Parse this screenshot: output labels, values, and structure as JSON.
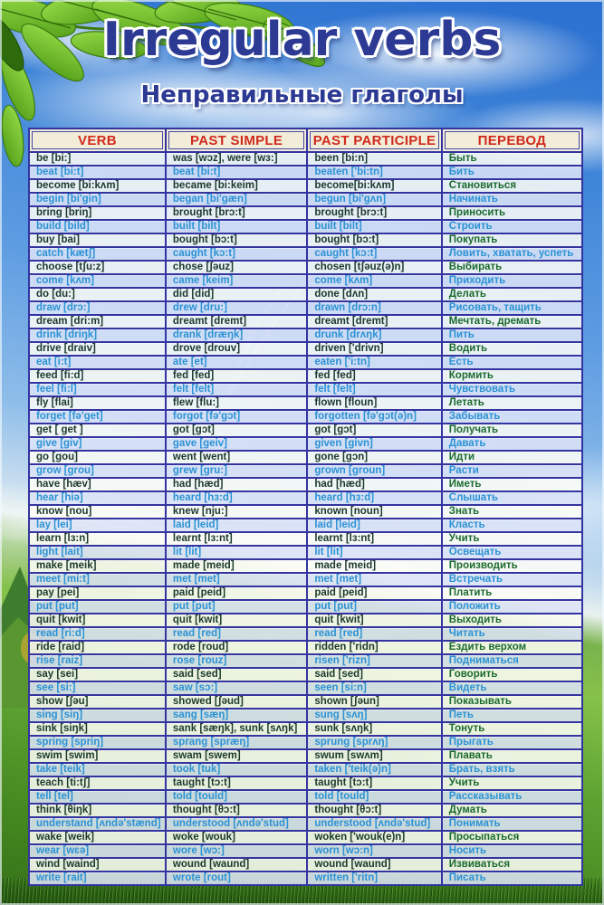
{
  "poster": {
    "title": "Irregular verbs",
    "subtitle": "Неправильные глаголы"
  },
  "table": {
    "headers": [
      "VERB",
      "PAST SIMPLE",
      "PAST PARTICIPLE",
      "ПЕРЕВОД"
    ],
    "rows": [
      [
        "be [bi:]",
        "was [wɔz], were [wɜ:]",
        "been [bi:n]",
        "Быть"
      ],
      [
        "beat [bi:t]",
        "beat [bi:t]",
        "beaten ['bi:tn]",
        "Бить"
      ],
      [
        "become [bi:kʌm]",
        "became [bi:keim]",
        "become[bi:kʌm]",
        "Становиться"
      ],
      [
        "begin [bi'gin]",
        "began [bi'gæn]",
        "begun [bi'gʌn]",
        "Начинать"
      ],
      [
        "bring [briŋ]",
        "brought [brɔ:t]",
        "brought [brɔ:t]",
        "Приносить"
      ],
      [
        "build [bild]",
        "built [bilt]",
        "built [bilt]",
        "Строить"
      ],
      [
        "buy [bai]",
        "bought [bɔ:t]",
        "bought [bɔ:t]",
        "Покупать"
      ],
      [
        "catch [kætʃ]",
        "caught [kɔ:t]",
        "caught [kɔ:t]",
        "Ловить, хватать, успеть"
      ],
      [
        "choose [tʃu:z]",
        "chose [ʃəuz]",
        "chosen [tʃəuz(ə)n]",
        "Выбирать"
      ],
      [
        "come [kʌm]",
        "came [keim]",
        "come [kʌm]",
        "Приходить"
      ],
      [
        "do [du:]",
        "did [did]",
        "done [dʌn]",
        "Делать"
      ],
      [
        "draw [drɔ:]",
        "drew [dru:]",
        "drawn [drɔ:n]",
        "Рисовать, тащить"
      ],
      [
        "dream [dri:m]",
        "dreamt [dremt]",
        "dreamt [dremt]",
        "Мечтать, дремать"
      ],
      [
        "drink [driŋk]",
        "drank [dræŋk]",
        "drunk [drʌŋk]",
        "Пить"
      ],
      [
        "drive [draiv]",
        "drove [drouv]",
        "driven ['drivn]",
        "Водить"
      ],
      [
        "eat [i:t]",
        "ate [et]",
        "eaten ['i:tn]",
        "Есть"
      ],
      [
        "feed [fi:d]",
        "fed [fed]",
        "fed [fed]",
        "Кормить"
      ],
      [
        "feel [fi:l]",
        "felt [felt]",
        "felt [felt]",
        "Чувствовать"
      ],
      [
        "fly [flai]",
        "flew [flu:]",
        "flown [floun]",
        "Летать"
      ],
      [
        "forget [fə'get]",
        "forgot [fə'gɔt]",
        "forgotten [fə'gɔt(ə)n]",
        "Забывать"
      ],
      [
        "get [ get ]",
        "got [gɔt]",
        "got [gɔt]",
        "Получать"
      ],
      [
        "give [giv]",
        "gave [geiv]",
        "given [givn]",
        "Давать"
      ],
      [
        "go [gou]",
        "went [went]",
        "gone [gɔn]",
        "Идти"
      ],
      [
        "grow [grou]",
        "grew [gru:]",
        "grown [groun]",
        "Расти"
      ],
      [
        "have [hæv]",
        "had [hæd]",
        "had [hæd]",
        "Иметь"
      ],
      [
        "hear [hiə]",
        "heard [hɜ:d]",
        "heard [hɜ:d]",
        "Слышать"
      ],
      [
        "know [nou]",
        "knew [nju:]",
        "known [noun]",
        "Знать"
      ],
      [
        "lay [lei]",
        "laid [leid]",
        "laid [leid]",
        "Класть"
      ],
      [
        "learn [lɜ:n]",
        "learnt [lɜ:nt]",
        "learnt [lɜ:nt]",
        "Учить"
      ],
      [
        "light [lait]",
        "lit [lit]",
        "lit [lit]",
        "Освещать"
      ],
      [
        "make [meik]",
        "made [meid]",
        "made [meid]",
        "Производить"
      ],
      [
        "meet [mi:t]",
        "met [met]",
        "met [met]",
        "Встречать"
      ],
      [
        "pay [pei]",
        "paid [peid]",
        "paid [peid]",
        "Платить"
      ],
      [
        "put [put]",
        "put [put]",
        "put [put]",
        "Положить"
      ],
      [
        "quit [kwit]",
        "quit [kwit]",
        "quit [kwit]",
        "Выходить"
      ],
      [
        "read [ri:d]",
        "read [red]",
        "read [red]",
        "Читать"
      ],
      [
        "ride [raid]",
        "rode [roud]",
        "ridden ['ridn]",
        "Ездить верхом"
      ],
      [
        "rise [raiz]",
        "rose [rouz]",
        "risen ['rizn]",
        "Подниматься"
      ],
      [
        "say [sei]",
        "said [sed]",
        "said [sed]",
        "Говорить"
      ],
      [
        "see [si:]",
        "saw [sɔ:]",
        "seen [si:n]",
        "Видеть"
      ],
      [
        "show [ʃəu]",
        "showed [ʃəud]",
        "shown [ʃəun]",
        "Показывать"
      ],
      [
        "sing [siŋ]",
        "sang [sæŋ]",
        "sung [sʌŋ]",
        "Петь"
      ],
      [
        "sink [siŋk]",
        "sank [sæŋk], sunk [sʌŋk]",
        "sunk [sʌŋk]",
        "Тонуть"
      ],
      [
        "spring [spriŋ]",
        "sprang [spræŋ]",
        "sprung [sprʌŋ]",
        "Прыгать"
      ],
      [
        "swim [swim]",
        "swam [swem]",
        "swum [swʌm]",
        "Плавать"
      ],
      [
        "take [teik]",
        "took [tuk]",
        "taken ['teik(ə)n]",
        "Брать, взять"
      ],
      [
        "teach [ti:tʃ]",
        "taught [tɔ:t]",
        "taught [tɔ:t]",
        "Учить"
      ],
      [
        "tell [tel]",
        "told [tould]",
        "told [tould]",
        "Рассказывать"
      ],
      [
        "think [θiŋk]",
        "thought [θɔ:t]",
        "thought [θɔ:t]",
        "Думать"
      ],
      [
        "understand [ʌndə'stænd]",
        "understood [ʌndə'stud]",
        "understood [ʌndə'stud]",
        "Понимать"
      ],
      [
        "wake [weik]",
        "woke [wouk]",
        "woken ['wouk(e)n]",
        "Просыпаться"
      ],
      [
        "wear [wɛə]",
        "wore [wɔ:]",
        "worn [wɔ:n]",
        "Носить"
      ],
      [
        "wind [waind]",
        "wound [waund]",
        "wound [waund]",
        "Извиваться"
      ],
      [
        "write [rait]",
        "wrote [rout]",
        "written ['ritn]",
        "Писать"
      ]
    ]
  },
  "colors": {
    "title_blue": "#2c3a94",
    "header_red": "#d02a1e",
    "header_background": "#f2edd8",
    "table_border": "#3434a0",
    "verb_text_dark": "#1c392c",
    "translation_green": "#1b6a2e",
    "row_accent_cyan": "#2b92d4"
  },
  "decorations": {
    "leaves": "green-leaves-top-left",
    "watermark": "white-feather",
    "background": "sky-clouds-meadow-grass"
  }
}
